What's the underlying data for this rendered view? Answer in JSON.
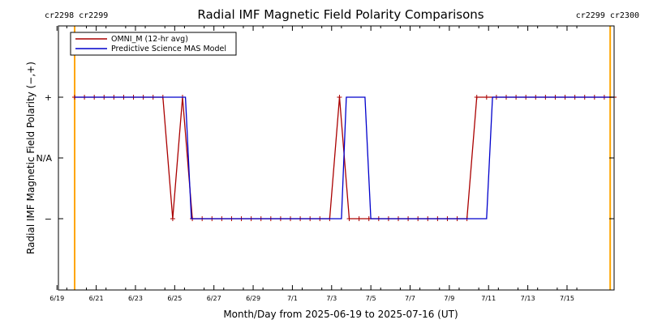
{
  "chart_data": {
    "type": "line",
    "title": "Radial IMF Magnetic Field Polarity Comparisons",
    "xlabel": "Month/Day from 2025-06-19 to 2025-07-16 (UT)",
    "ylabel": "Radial IMF Magnetic Field Polarity (−,+)",
    "x_unit": "days since 2025-06-19 00:00 UT",
    "xlim": [
      0,
      27.5
    ],
    "ylim": [
      -1.5,
      1.5
    ],
    "grid": false,
    "legend_position": "top-left",
    "x_ticks": [
      {
        "x": 0,
        "label": "6/19"
      },
      {
        "x": 2,
        "label": "6/21"
      },
      {
        "x": 4,
        "label": "6/23"
      },
      {
        "x": 6,
        "label": "6/25"
      },
      {
        "x": 8,
        "label": "6/27"
      },
      {
        "x": 10,
        "label": "6/29"
      },
      {
        "x": 12,
        "label": "7/1"
      },
      {
        "x": 14,
        "label": "7/3"
      },
      {
        "x": 16,
        "label": "7/5"
      },
      {
        "x": 18,
        "label": "7/7"
      },
      {
        "x": 20,
        "label": "7/9"
      },
      {
        "x": 22,
        "label": "7/11"
      },
      {
        "x": 24,
        "label": "7/13"
      },
      {
        "x": 26,
        "label": "7/15"
      }
    ],
    "y_ticks": [
      {
        "y": 1,
        "label": "+"
      },
      {
        "y": 0,
        "label": "N/A"
      },
      {
        "y": -1,
        "label": "−"
      }
    ],
    "carrington": [
      {
        "x": 0.9,
        "label": "cr2298 cr2299",
        "position": "top-left"
      },
      {
        "x": 28.2,
        "label": "cr2299 cr2300",
        "position": "top-right"
      }
    ],
    "colors": {
      "omni": "#aa0000",
      "mas": "#0000cc",
      "carrington_line": "#ffa500",
      "carrington_text": "#ff9900"
    },
    "series": [
      {
        "name": "OMNI_M (12-hr avg)",
        "color": "#aa0000",
        "markers": true,
        "x": [
          0.9,
          1.4,
          1.9,
          2.4,
          2.9,
          3.4,
          3.9,
          4.4,
          4.9,
          5.4,
          5.9,
          6.4,
          6.9,
          7.4,
          7.9,
          8.4,
          8.9,
          9.4,
          9.9,
          10.4,
          10.9,
          11.4,
          11.9,
          12.4,
          12.9,
          13.4,
          13.9,
          14.4,
          14.9,
          15.4,
          15.9,
          16.4,
          16.9,
          17.4,
          17.9,
          18.4,
          18.9,
          19.4,
          19.9,
          20.4,
          20.9,
          21.4,
          21.9,
          22.4,
          22.9,
          23.4,
          23.9,
          24.4,
          24.9,
          25.4,
          25.9,
          26.4,
          26.9,
          27.4,
          27.9,
          28.4
        ],
        "y": [
          1,
          1,
          1,
          1,
          1,
          1,
          1,
          1,
          1,
          1,
          -1,
          1,
          -1,
          -1,
          -1,
          -1,
          -1,
          -1,
          -1,
          -1,
          -1,
          -1,
          -1,
          -1,
          -1,
          -1,
          -1,
          1,
          -1,
          -1,
          -1,
          -1,
          -1,
          -1,
          -1,
          -1,
          -1,
          -1,
          -1,
          -1,
          -1,
          1,
          1,
          1,
          1,
          1,
          1,
          1,
          1,
          1,
          1,
          1,
          1,
          1,
          1,
          1
        ]
      },
      {
        "name": "Predictive Science MAS Model",
        "color": "#0000cc",
        "markers": false,
        "x": [
          0.9,
          6.55,
          6.85,
          14.5,
          14.75,
          15.7,
          16.0,
          21.9,
          22.2,
          28.4
        ],
        "y": [
          1,
          1,
          -1,
          -1,
          1,
          1,
          -1,
          -1,
          1,
          1
        ]
      }
    ]
  }
}
